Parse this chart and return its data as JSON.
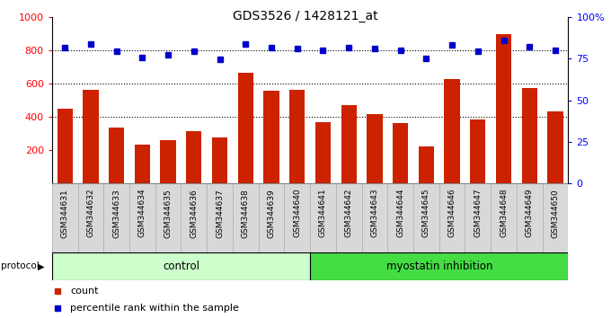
{
  "title": "GDS3526 / 1428121_at",
  "categories": [
    "GSM344631",
    "GSM344632",
    "GSM344633",
    "GSM344634",
    "GSM344635",
    "GSM344636",
    "GSM344637",
    "GSM344638",
    "GSM344639",
    "GSM344640",
    "GSM344641",
    "GSM344642",
    "GSM344643",
    "GSM344644",
    "GSM344645",
    "GSM344646",
    "GSM344647",
    "GSM344648",
    "GSM344649",
    "GSM344650"
  ],
  "bar_values": [
    450,
    560,
    335,
    230,
    260,
    315,
    275,
    665,
    555,
    565,
    365,
    470,
    415,
    360,
    220,
    625,
    385,
    900,
    575,
    430
  ],
  "percentile_values": [
    82,
    84,
    79.5,
    76,
    77.5,
    79.5,
    74.5,
    84,
    82,
    81.5,
    80,
    82,
    81,
    80,
    75,
    83.5,
    79.5,
    86,
    82.5,
    80
  ],
  "bar_color": "#cc2200",
  "dot_color": "#0000cc",
  "ylim_left": [
    0,
    1000
  ],
  "ylim_right": [
    0,
    100
  ],
  "yticks_left": [
    200,
    400,
    600,
    800,
    1000
  ],
  "yticks_right": [
    0,
    25,
    50,
    75,
    100
  ],
  "grid_values": [
    400,
    600,
    800
  ],
  "control_count": 10,
  "protocol_label": "protocol",
  "control_label": "control",
  "inhibition_label": "myostatin inhibition",
  "legend_count_label": "count",
  "legend_pct_label": "percentile rank within the sample",
  "control_color": "#ccffcc",
  "inhibition_color": "#44dd44",
  "bg_color": "#d8d8d8",
  "plot_bg_color": "#ffffff"
}
